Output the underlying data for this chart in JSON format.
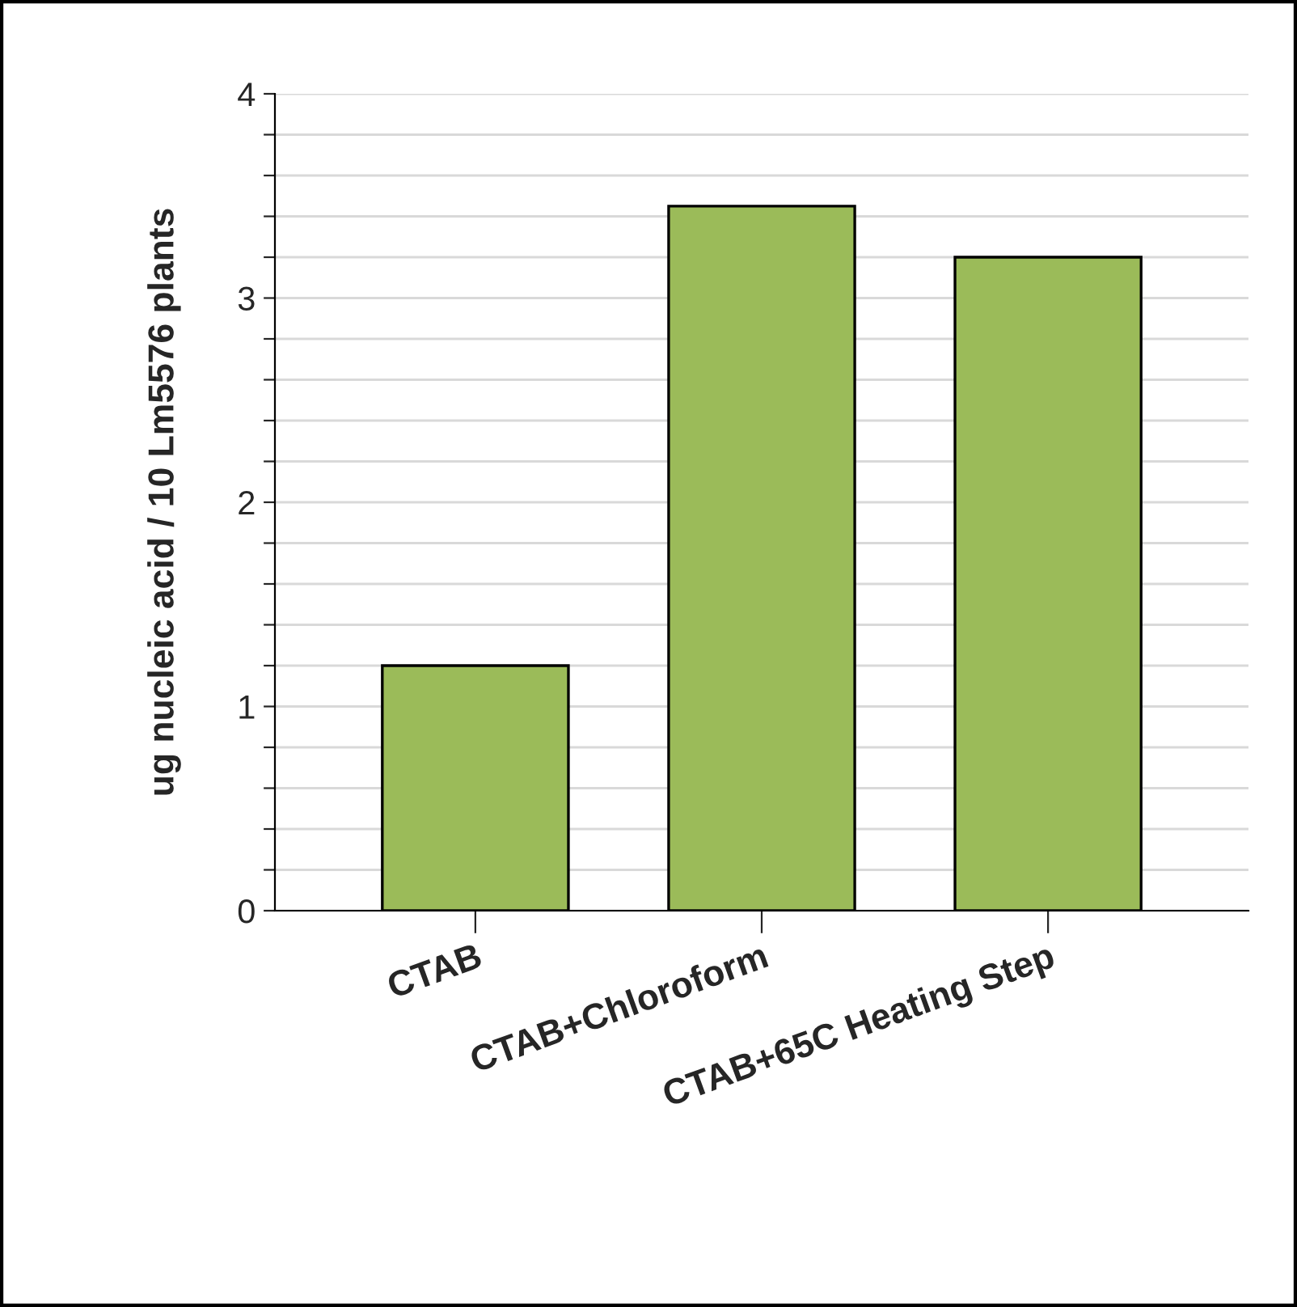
{
  "chart_data": {
    "type": "bar",
    "ylabel": "ug nucleic acid / 10 Lm5576 plants",
    "categories": [
      "CTAB",
      "CTAB+Chloroform",
      "CTAB+65C Heating Step"
    ],
    "values": [
      1.2,
      3.45,
      3.2
    ],
    "color": "#9bbb59",
    "ylim": [
      0,
      4
    ],
    "yticks": [
      0,
      {
        "value": 0.2,
        "label": null
      },
      {
        "value": 0.4,
        "label": null
      },
      {
        "value": 0.6,
        "label": null
      },
      {
        "value": 0.8,
        "label": null
      },
      1,
      {
        "value": 1.2,
        "label": null
      },
      {
        "value": 1.4,
        "label": null
      },
      {
        "value": 1.6,
        "label": null
      },
      {
        "value": 1.8,
        "label": null
      },
      2,
      {
        "value": 2.2,
        "label": null
      },
      {
        "value": 2.4,
        "label": null
      },
      {
        "value": 2.6,
        "label": null
      },
      {
        "value": 2.8,
        "label": null
      },
      3,
      {
        "value": 3.2,
        "label": null
      },
      {
        "value": 3.4,
        "label": null
      },
      {
        "value": 3.6,
        "label": null
      },
      {
        "value": 3.8,
        "label": null
      },
      4
    ],
    "grid": "y"
  }
}
